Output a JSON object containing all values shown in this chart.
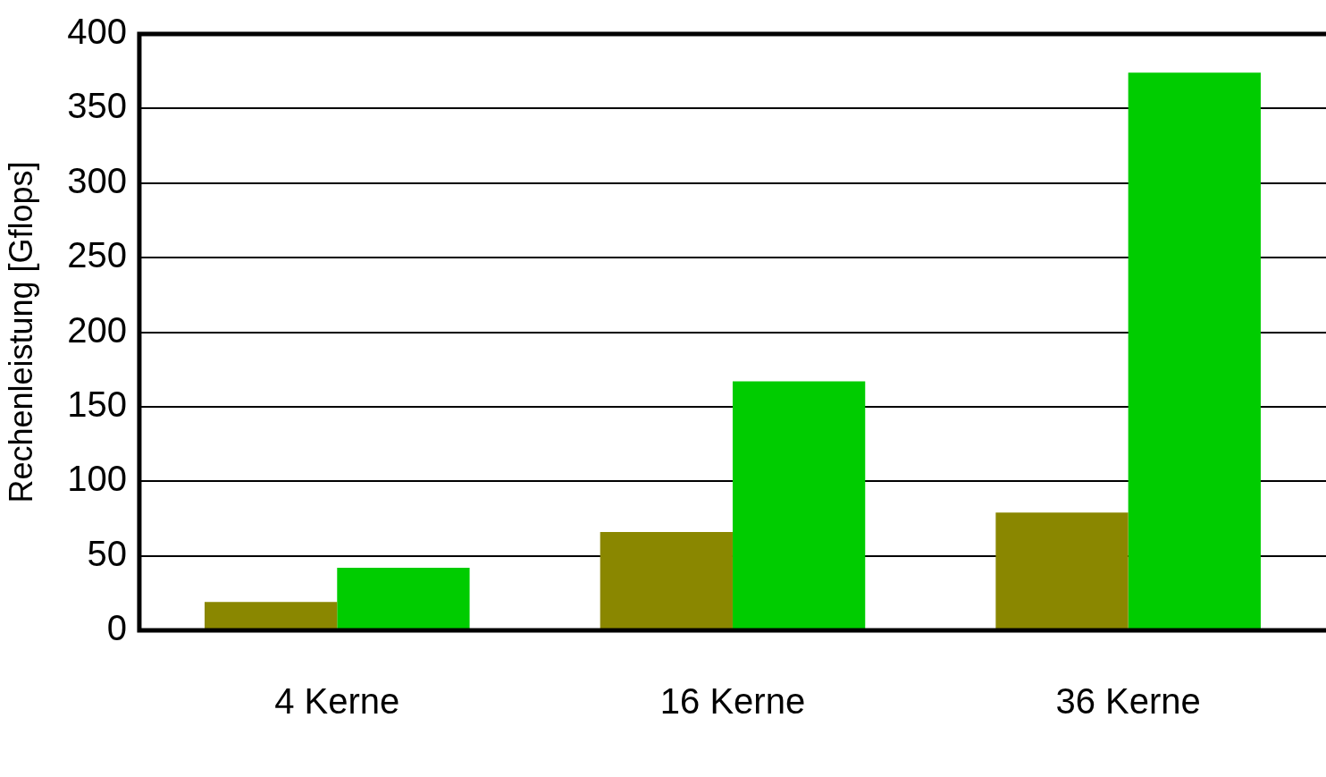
{
  "chart_data": {
    "type": "bar",
    "ylabel": "Rechenleistung [Gflops]",
    "categories": [
      "4 Kerne",
      "16 Kerne",
      "36 Kerne"
    ],
    "series": [
      {
        "color": "#8a8700",
        "values": [
          19,
          66,
          79
        ]
      },
      {
        "color": "#00cc00",
        "values": [
          42,
          167,
          374
        ]
      }
    ],
    "ylim": [
      0,
      400
    ],
    "yticks": [
      0,
      50,
      100,
      150,
      200,
      250,
      300,
      350,
      400
    ],
    "grid": "y",
    "legend": false
  }
}
